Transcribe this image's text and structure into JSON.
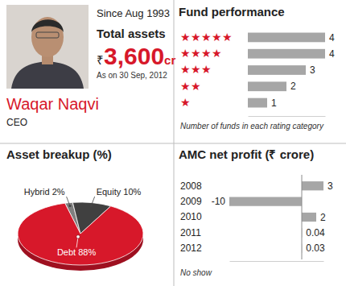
{
  "profile": {
    "since": "Since Aug 1993",
    "total_assets_label": "Total assets",
    "currency": "₹",
    "total_assets": "3,600",
    "unit": "cr",
    "as_on": "As on 30 Sep, 2012",
    "name": "Waqar Naqvi",
    "role": "CEO"
  },
  "chart_data": [
    {
      "type": "bar",
      "title": "Fund performance",
      "orientation": "horizontal",
      "categories": [
        "★★★★★",
        "★★★★",
        "★★★",
        "★★",
        "★"
      ],
      "values": [
        4,
        4,
        3,
        2,
        1
      ],
      "color": "#a6a6a6",
      "xlim": [
        0,
        4
      ],
      "data_labels": true,
      "tick_labels": "y",
      "xlabel": "Number of funds in each rating category"
    },
    {
      "type": "pie",
      "title": "Asset breakup (%)",
      "categories": [
        "Hybrid",
        "Equity",
        "Debt"
      ],
      "values": [
        2,
        10,
        88
      ],
      "value_labels": [
        "2%",
        "10%",
        "88%"
      ],
      "colors": [
        "#7f7f7f",
        "#404040",
        "#d7182a"
      ]
    },
    {
      "type": "bar",
      "title": "AMC net profit (₹ crore)",
      "orientation": "horizontal",
      "categories": [
        "2008",
        "2009",
        "2010",
        "2011",
        "2012"
      ],
      "values": [
        3,
        -10,
        2,
        0.04,
        0.03
      ],
      "color": "#a6a6a6",
      "xlim": [
        -10,
        3
      ],
      "data_labels": true,
      "tick_labels": "y",
      "annotations": [
        "No show"
      ]
    }
  ]
}
